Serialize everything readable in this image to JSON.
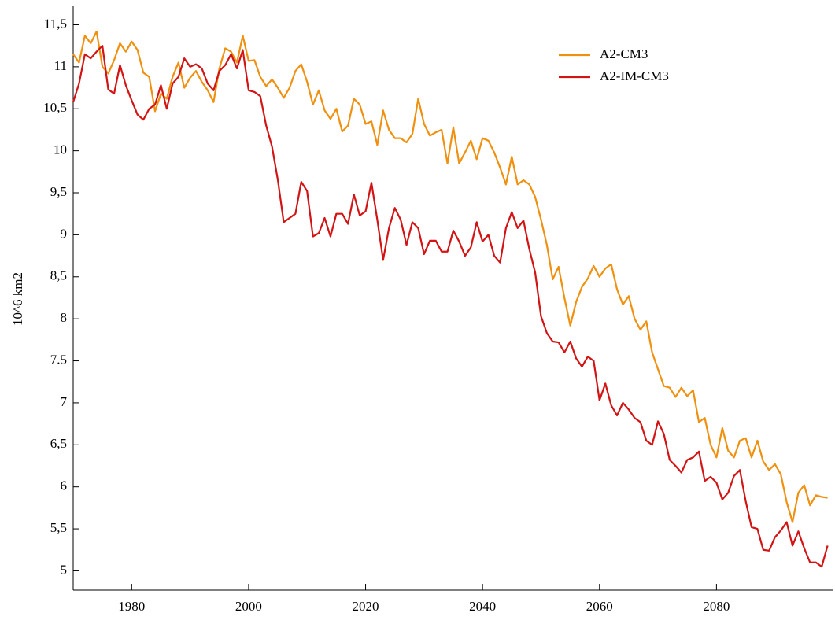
{
  "chart_data": {
    "type": "line",
    "y_label": "10^6 km2",
    "x": [
      1970,
      1971,
      1972,
      1973,
      1974,
      1975,
      1976,
      1977,
      1978,
      1979,
      1980,
      1981,
      1982,
      1983,
      1984,
      1985,
      1986,
      1987,
      1988,
      1989,
      1990,
      1991,
      1992,
      1993,
      1994,
      1995,
      1996,
      1997,
      1998,
      1999,
      2000,
      2001,
      2002,
      2003,
      2004,
      2005,
      2006,
      2007,
      2008,
      2009,
      2010,
      2011,
      2012,
      2013,
      2014,
      2015,
      2016,
      2017,
      2018,
      2019,
      2020,
      2021,
      2022,
      2023,
      2024,
      2025,
      2026,
      2027,
      2028,
      2029,
      2030,
      2031,
      2032,
      2033,
      2034,
      2035,
      2036,
      2037,
      2038,
      2039,
      2040,
      2041,
      2042,
      2043,
      2044,
      2045,
      2046,
      2047,
      2048,
      2049,
      2050,
      2051,
      2052,
      2053,
      2054,
      2055,
      2056,
      2057,
      2058,
      2059,
      2060,
      2061,
      2062,
      2063,
      2064,
      2065,
      2066,
      2067,
      2068,
      2069,
      2070,
      2071,
      2072,
      2073,
      2074,
      2075,
      2076,
      2077,
      2078,
      2079,
      2080,
      2081,
      2082,
      2083,
      2084,
      2085,
      2086,
      2087,
      2088,
      2089,
      2090,
      2091,
      2092,
      2093,
      2094,
      2095,
      2096,
      2097,
      2098,
      2099
    ],
    "series": [
      {
        "name": "A2-CM3",
        "color": "#f0900f",
        "values": [
          11.15,
          11.05,
          11.37,
          11.28,
          11.42,
          11.0,
          10.92,
          11.08,
          11.28,
          11.18,
          11.3,
          11.2,
          10.93,
          10.88,
          10.47,
          10.68,
          10.62,
          10.88,
          11.05,
          10.75,
          10.87,
          10.95,
          10.82,
          10.72,
          10.58,
          10.98,
          11.22,
          11.18,
          11.05,
          11.37,
          11.07,
          11.08,
          10.88,
          10.77,
          10.85,
          10.75,
          10.63,
          10.75,
          10.95,
          11.03,
          10.82,
          10.55,
          10.72,
          10.48,
          10.38,
          10.5,
          10.23,
          10.3,
          10.62,
          10.55,
          10.32,
          10.35,
          10.07,
          10.48,
          10.25,
          10.15,
          10.15,
          10.1,
          10.2,
          10.62,
          10.32,
          10.18,
          10.22,
          10.25,
          9.85,
          10.28,
          9.85,
          9.98,
          10.12,
          9.9,
          10.15,
          10.12,
          9.98,
          9.8,
          9.6,
          9.93,
          9.6,
          9.65,
          9.6,
          9.45,
          9.18,
          8.88,
          8.47,
          8.62,
          8.25,
          7.92,
          8.2,
          8.38,
          8.48,
          8.63,
          8.5,
          8.6,
          8.65,
          8.35,
          8.17,
          8.27,
          8.0,
          7.87,
          7.97,
          7.6,
          7.4,
          7.2,
          7.18,
          7.07,
          7.18,
          7.08,
          7.15,
          6.77,
          6.82,
          6.5,
          6.35,
          6.7,
          6.43,
          6.35,
          6.55,
          6.58,
          6.35,
          6.55,
          6.3,
          6.2,
          6.27,
          6.15,
          5.82,
          5.58,
          5.93,
          6.02,
          5.78,
          5.9,
          5.88,
          5.87
        ]
      },
      {
        "name": "A2-IM-CM3",
        "color": "#d21414",
        "values": [
          10.58,
          10.8,
          11.15,
          11.1,
          11.18,
          11.25,
          10.73,
          10.68,
          11.02,
          10.78,
          10.6,
          10.43,
          10.37,
          10.5,
          10.55,
          10.78,
          10.5,
          10.8,
          10.88,
          11.1,
          11.0,
          11.03,
          10.98,
          10.8,
          10.72,
          10.95,
          11.02,
          11.15,
          10.98,
          11.2,
          10.72,
          10.7,
          10.65,
          10.3,
          10.05,
          9.65,
          9.15,
          9.2,
          9.25,
          9.63,
          9.52,
          8.98,
          9.02,
          9.2,
          8.98,
          9.25,
          9.25,
          9.13,
          9.48,
          9.23,
          9.28,
          9.62,
          9.18,
          8.7,
          9.08,
          9.32,
          9.18,
          8.88,
          9.15,
          9.08,
          8.77,
          8.93,
          8.93,
          8.8,
          8.8,
          9.05,
          8.92,
          8.75,
          8.85,
          9.15,
          8.92,
          9.0,
          8.75,
          8.67,
          9.08,
          9.27,
          9.08,
          9.17,
          8.83,
          8.55,
          8.03,
          7.83,
          7.73,
          7.72,
          7.6,
          7.73,
          7.53,
          7.43,
          7.55,
          7.5,
          7.03,
          7.23,
          6.97,
          6.85,
          7.0,
          6.92,
          6.82,
          6.77,
          6.55,
          6.5,
          6.78,
          6.63,
          6.32,
          6.25,
          6.17,
          6.32,
          6.35,
          6.42,
          6.07,
          6.12,
          6.05,
          5.85,
          5.93,
          6.13,
          6.2,
          5.83,
          5.52,
          5.5,
          5.25,
          5.24,
          5.4,
          5.48,
          5.58,
          5.3,
          5.47,
          5.27,
          5.1,
          5.1,
          5.05,
          5.3
        ]
      }
    ],
    "xlim": [
      1970,
      2100
    ],
    "xticks": [
      1980,
      2000,
      2020,
      2040,
      2060,
      2080
    ],
    "ylim": [
      4.77,
      11.72
    ],
    "yticks": [
      5,
      {
        "value": 5.5,
        "label": "5,5"
      },
      6,
      {
        "value": 6.5,
        "label": "6,5"
      },
      7,
      {
        "value": 7.5,
        "label": "7.5"
      },
      8,
      {
        "value": 8.5,
        "label": "8,5"
      },
      9,
      {
        "value": 9.5,
        "label": "9,5"
      },
      10,
      {
        "value": 10.5,
        "label": "10,5"
      },
      11,
      {
        "value": 11.5,
        "label": "11,5"
      }
    ],
    "legend": "upper-right",
    "grid": false
  }
}
